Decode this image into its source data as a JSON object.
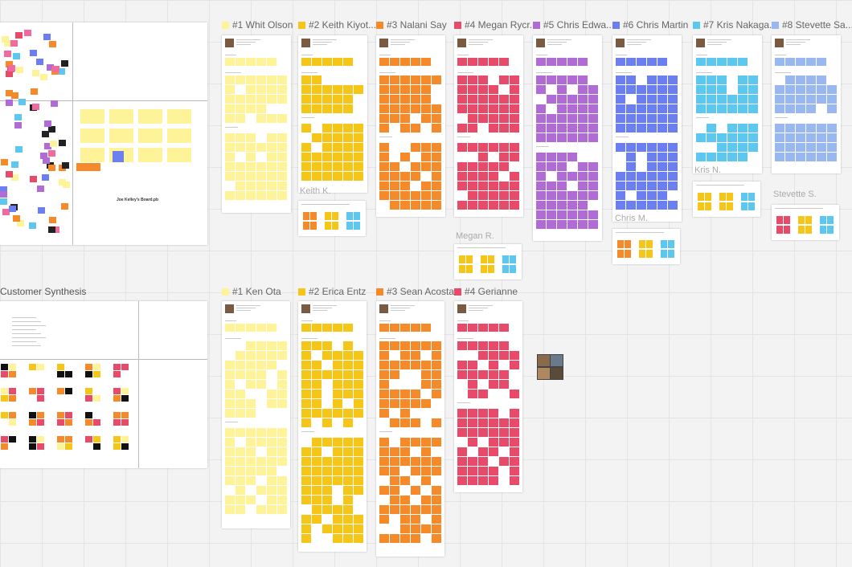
{
  "board_title": "Joe Kelley's Board.pb",
  "synthesis_title": "Customer Synthesis",
  "top_frames": [
    "#1 Whit Olson",
    "#2 Keith Kiyot...",
    "#3 Nalani Say",
    "#4 Megan Rycr...",
    "#5 Chris Edwa...",
    "#6 Chris Martin",
    "#7 Kris Nakaga...",
    "#8 Stevette Sa..."
  ],
  "bottom_frames": [
    "#1 Ken Ota",
    "#2 Erica Entz",
    "#3 Sean Acosta",
    "#4 Gerianne"
  ],
  "cursors": [
    "Keith K.",
    "Megan R.",
    "Chris M.",
    "Kris N.",
    "Stevette S."
  ]
}
